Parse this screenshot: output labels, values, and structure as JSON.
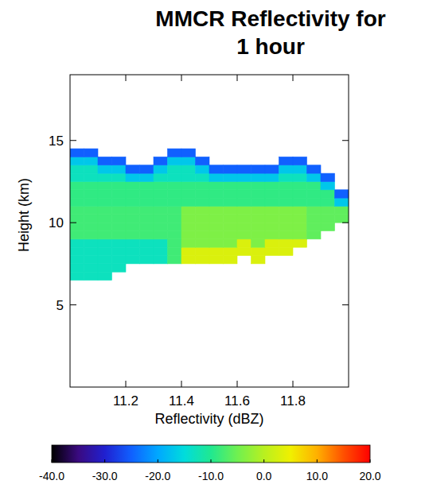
{
  "chart_data": {
    "type": "heatmap",
    "title": "MMCR Reflectivity for 1 hour",
    "x_label": "Reflectivity (dBZ)",
    "y_label": "Height (km)",
    "xlim": [
      11.0,
      12.0
    ],
    "ylim": [
      0,
      19
    ],
    "xticks": [
      11.2,
      11.4,
      11.6,
      11.8
    ],
    "yticks": [
      5,
      10,
      15
    ],
    "x_edges": [
      11.0,
      11.05,
      11.1,
      11.15,
      11.2,
      11.25,
      11.3,
      11.35,
      11.4,
      11.45,
      11.5,
      11.55,
      11.6,
      11.65,
      11.7,
      11.75,
      11.8,
      11.85,
      11.9,
      11.95,
      12.0
    ],
    "y_edges": [
      6.5,
      7.0,
      7.5,
      8.0,
      8.5,
      9.0,
      9.5,
      10.0,
      10.5,
      11.0,
      11.5,
      12.0,
      12.5,
      13.0,
      13.5,
      14.0,
      14.5
    ],
    "cells": [
      [
        -13,
        -13,
        -13,
        null,
        null,
        null,
        null,
        null,
        null,
        null,
        null,
        null,
        null,
        null,
        null,
        null,
        null,
        null,
        null,
        null
      ],
      [
        -13,
        -13,
        -13,
        -13,
        null,
        null,
        null,
        null,
        null,
        null,
        null,
        null,
        null,
        null,
        null,
        null,
        null,
        null,
        null,
        null
      ],
      [
        -13,
        -13,
        -13,
        -13,
        -13,
        -13,
        -13,
        -8,
        3,
        3,
        3,
        3,
        null,
        3,
        null,
        null,
        null,
        null,
        null,
        null
      ],
      [
        -13,
        -13,
        -13,
        -13,
        -13,
        -13,
        -13,
        -8,
        3,
        3,
        3,
        3,
        3,
        3,
        3,
        3,
        null,
        null,
        null,
        null
      ],
      [
        -13,
        -13,
        -13,
        -13,
        -13,
        -13,
        -13,
        -8,
        -4,
        -4,
        -4,
        -4,
        3,
        -4,
        3,
        3,
        3,
        null,
        null,
        null
      ],
      [
        -8,
        -8,
        -8,
        -8,
        -8,
        -8,
        -8,
        -8,
        -4,
        -4,
        -4,
        -4,
        -4,
        -4,
        -4,
        -4,
        -4,
        -6,
        null,
        null
      ],
      [
        -8,
        -8,
        -8,
        -8,
        -8,
        -8,
        -8,
        -8,
        -4,
        -4,
        -4,
        -4,
        -4,
        -4,
        -4,
        -4,
        -4,
        -6,
        -6,
        null
      ],
      [
        -8,
        -8,
        -8,
        -8,
        -8,
        -8,
        -8,
        -8,
        -4,
        -4,
        -4,
        -4,
        -4,
        -4,
        -4,
        -4,
        -4,
        -6,
        -6,
        -6
      ],
      [
        -8,
        -8,
        -8,
        -8,
        -8,
        -8,
        -8,
        -8,
        -4,
        -4,
        -4,
        -4,
        -4,
        -4,
        -4,
        -4,
        -4,
        -6,
        -6,
        -6
      ],
      [
        -9,
        -9,
        -9,
        -9,
        -9,
        -9,
        -9,
        -9,
        -9,
        -9,
        -9,
        -9,
        -9,
        -9,
        -9,
        -9,
        -9,
        -9,
        -9,
        -17
      ],
      [
        -9,
        -9,
        -9,
        -9,
        -9,
        -9,
        -9,
        -9,
        -9,
        -9,
        -9,
        -9,
        -9,
        -9,
        -9,
        -9,
        -9,
        -9,
        -9,
        -25
      ],
      [
        -9,
        -9,
        -9,
        -9,
        -9,
        -9,
        -9,
        -9,
        -9,
        -9,
        -9,
        -9,
        -9,
        -9,
        -9,
        -9,
        -9,
        -9,
        -17,
        null
      ],
      [
        -13,
        -13,
        -13,
        -13,
        -17,
        -17,
        -13,
        -13,
        -13,
        -13,
        -17,
        -17,
        -17,
        -17,
        -17,
        -13,
        -13,
        -17,
        -25,
        null
      ],
      [
        -13,
        -13,
        -17,
        -17,
        -25,
        -25,
        -17,
        -13,
        -13,
        -17,
        -25,
        -25,
        -25,
        -25,
        -25,
        -17,
        -17,
        -25,
        null,
        null
      ],
      [
        -17,
        -17,
        -25,
        -25,
        null,
        null,
        -25,
        -17,
        -17,
        -25,
        null,
        null,
        null,
        null,
        null,
        -25,
        -25,
        null,
        null,
        null
      ],
      [
        -25,
        -25,
        null,
        null,
        null,
        null,
        null,
        -25,
        -25,
        null,
        null,
        null,
        null,
        null,
        null,
        null,
        null,
        null,
        null,
        null
      ]
    ],
    "colorbar": {
      "range": [
        -40,
        20
      ],
      "ticks": [
        {
          "value": -40,
          "label": "-40.0"
        },
        {
          "value": -30,
          "label": "-30.0"
        },
        {
          "value": -20,
          "label": "-20.0"
        },
        {
          "value": -10,
          "label": "-10.0"
        },
        {
          "value": 0,
          "label": "0.0"
        },
        {
          "value": 10,
          "label": "10.0"
        },
        {
          "value": 20,
          "label": "20.0"
        }
      ]
    }
  }
}
